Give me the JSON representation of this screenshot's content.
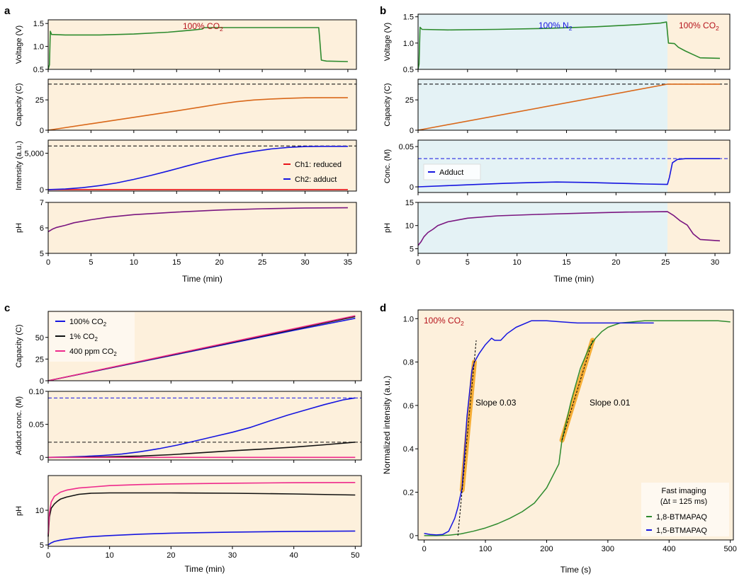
{
  "colors": {
    "background_co2": "#fdf0dc",
    "background_n2": "#e4f2f5",
    "green": "#2e8b2e",
    "orange": "#d9681a",
    "blue": "#1515e0",
    "red": "#e8141a",
    "purple": "#7a1680",
    "black": "#111111",
    "magenta": "#ee2a8c",
    "highlight": "#f5a623",
    "co2_label": "#b5121b",
    "n2_label": "#1515e0"
  },
  "chart_data": [
    {
      "panel": "a",
      "type": "line",
      "xlabel": "Time (min)",
      "xlim": [
        0,
        36
      ],
      "xticks": [
        "0",
        "5",
        "10",
        "15",
        "20",
        "25",
        "30",
        "35"
      ],
      "annotation": {
        "text": "100% CO",
        "sub": "2"
      },
      "subplots": [
        {
          "ylabel": "Voltage (V)",
          "ylim": [
            0.5,
            1.58
          ],
          "yticks": [
            "0.5",
            "1.0",
            "1.5"
          ],
          "series": [
            {
              "name": "Voltage",
              "color": "green",
              "x": [
                0,
                0.15,
                0.25,
                0.4,
                2,
                6,
                10,
                14,
                17,
                18,
                18.2,
                19,
                25,
                31.6,
                31.7,
                31.9,
                32.5,
                35
              ],
              "y": [
                0.5,
                0.6,
                1.33,
                1.26,
                1.25,
                1.25,
                1.27,
                1.31,
                1.36,
                1.38,
                1.41,
                1.41,
                1.41,
                1.41,
                1.2,
                0.7,
                0.68,
                0.67
              ]
            }
          ]
        },
        {
          "ylabel": "Capacity (C)",
          "ylim": [
            0,
            42
          ],
          "yticks": [
            "0",
            "25"
          ],
          "hline": 38,
          "series": [
            {
              "name": "Capacity",
              "color": "orange",
              "x": [
                0,
                5,
                10,
                15,
                18,
                20,
                22,
                24,
                26,
                28,
                30,
                32,
                35
              ],
              "y": [
                0,
                5.3,
                10.6,
                15.9,
                19.3,
                21.6,
                23.5,
                24.9,
                25.7,
                26.3,
                26.7,
                26.8,
                26.8
              ]
            }
          ]
        },
        {
          "ylabel": "Intensity (a.u.)",
          "ylim": [
            -200,
            6800
          ],
          "yticks": [
            "0",
            "5,000"
          ],
          "hline": 6000,
          "legend": [
            "Ch1: reduced",
            "Ch2: adduct"
          ],
          "series": [
            {
              "name": "Ch1: reduced",
              "color": "red",
              "x": [
                0,
                35
              ],
              "y": [
                0,
                0
              ]
            },
            {
              "name": "Ch2: adduct",
              "color": "blue",
              "x": [
                0,
                2,
                4,
                6,
                8,
                10,
                12,
                14,
                16,
                18,
                20,
                22,
                24,
                26,
                28,
                30,
                32,
                35
              ],
              "y": [
                0,
                80,
                270,
                550,
                920,
                1400,
                1950,
                2550,
                3180,
                3800,
                4350,
                4850,
                5250,
                5580,
                5800,
                5920,
                5940,
                5940
              ]
            }
          ]
        },
        {
          "ylabel": "pH",
          "ylim": [
            5,
            7
          ],
          "yticks": [
            "5",
            "6",
            "7"
          ],
          "series": [
            {
              "name": "pH",
              "color": "purple",
              "x": [
                0,
                0.5,
                1,
                2,
                3,
                5,
                7,
                10,
                15,
                20,
                25,
                30,
                35
              ],
              "y": [
                5.85,
                5.95,
                6.02,
                6.1,
                6.2,
                6.32,
                6.42,
                6.52,
                6.62,
                6.7,
                6.75,
                6.78,
                6.79
              ]
            }
          ]
        }
      ]
    },
    {
      "panel": "b",
      "type": "line",
      "xlabel": "Time (min)",
      "xlim": [
        0,
        31.5
      ],
      "xticks": [
        "0",
        "5",
        "10",
        "15",
        "20",
        "25",
        "30"
      ],
      "n2_end": 25.2,
      "annotations": [
        {
          "text": "100% N",
          "sub": "2"
        },
        {
          "text": "100% CO",
          "sub": "2"
        }
      ],
      "subplots": [
        {
          "ylabel": "Voltage (V)",
          "ylim": [
            0.5,
            1.55
          ],
          "yticks": [
            "0.5",
            "1.0",
            "1.5"
          ],
          "series": [
            {
              "name": "Voltage",
              "color": "green",
              "x": [
                0,
                0.1,
                0.2,
                0.4,
                3,
                8,
                13,
                18,
                22,
                24.5,
                25.1,
                25.3,
                25.9,
                26.3,
                27,
                27.8,
                28.5,
                30.5
              ],
              "y": [
                0.5,
                0.6,
                1.3,
                1.26,
                1.25,
                1.26,
                1.28,
                1.31,
                1.35,
                1.38,
                1.4,
                1.0,
                0.99,
                0.92,
                0.85,
                0.78,
                0.72,
                0.71
              ]
            }
          ]
        },
        {
          "ylabel": "Capacity (C)",
          "ylim": [
            0,
            42
          ],
          "yticks": [
            "0",
            "25"
          ],
          "hline": 38,
          "series": [
            {
              "name": "Capacity",
              "color": "orange",
              "x": [
                0,
                25.2,
                30.5
              ],
              "y": [
                0,
                38,
                38
              ]
            }
          ]
        },
        {
          "ylabel": "Conc. (M)",
          "ylim": [
            -0.007,
            0.058
          ],
          "yticks": [
            "0",
            "0.05"
          ],
          "hline": 0.035,
          "legend": [
            "Adduct"
          ],
          "series": [
            {
              "name": "Adduct",
              "color": "blue",
              "x": [
                0,
                3,
                6,
                9,
                12,
                14,
                17,
                20,
                23,
                25.2,
                25.4,
                25.7,
                26.2,
                27,
                28,
                30.5
              ],
              "y": [
                0,
                0.0015,
                0.003,
                0.0045,
                0.0055,
                0.006,
                0.0055,
                0.0045,
                0.0035,
                0.003,
                0.012,
                0.03,
                0.034,
                0.035,
                0.035,
                0.035
              ]
            }
          ]
        },
        {
          "ylabel": "pH",
          "ylim": [
            4,
            15
          ],
          "yticks": [
            "5",
            "10",
            "15"
          ],
          "series": [
            {
              "name": "pH",
              "color": "purple",
              "x": [
                0,
                0.3,
                0.6,
                1,
                1.5,
                2,
                3,
                5,
                8,
                12,
                17,
                21,
                25.2,
                25.8,
                26.5,
                27.2,
                27.8,
                28.5,
                30.5
              ],
              "y": [
                5.7,
                6.5,
                7.6,
                8.5,
                9.2,
                10,
                10.8,
                11.6,
                12.1,
                12.4,
                12.7,
                12.9,
                13,
                12.2,
                11,
                10.1,
                8.2,
                7,
                6.7
              ]
            }
          ]
        }
      ]
    },
    {
      "panel": "c",
      "type": "line",
      "xlabel": "Time (min)",
      "xlim": [
        0,
        51
      ],
      "xticks": [
        "0",
        "10",
        "20",
        "30",
        "40",
        "50"
      ],
      "legend": [
        {
          "text": "100% CO",
          "sub": "2"
        },
        {
          "text": "1% CO",
          "sub": "2"
        },
        {
          "text": "400 ppm CO",
          "sub": "2"
        }
      ],
      "subplots": [
        {
          "ylabel": "Capacity (C)",
          "ylim": [
            0,
            80
          ],
          "yticks": [
            "0",
            "25",
            "50"
          ],
          "series": [
            {
              "name": "100% CO2",
              "color": "blue",
              "x": [
                0,
                40,
                50
              ],
              "y": [
                0,
                58,
                72
              ]
            },
            {
              "name": "1% CO2",
              "color": "black",
              "x": [
                0,
                50
              ],
              "y": [
                0,
                74
              ]
            },
            {
              "name": "400 ppm CO2",
              "color": "magenta",
              "x": [
                0,
                50
              ],
              "y": [
                0,
                75
              ]
            }
          ]
        },
        {
          "ylabel": "Adduct conc. (M)",
          "ylim": [
            -0.004,
            0.1
          ],
          "yticks": [
            "0",
            "0.05",
            "0.10"
          ],
          "hlines": [
            {
              "y": 0.09,
              "color": "blue"
            },
            {
              "y": 0.023,
              "color": "black"
            }
          ],
          "series": [
            {
              "name": "100% CO2",
              "color": "blue",
              "x": [
                0,
                3,
                6,
                9,
                12,
                15,
                18,
                21,
                24,
                27,
                30,
                33,
                36,
                39,
                42,
                45,
                48,
                50
              ],
              "y": [
                0,
                0.0005,
                0.0015,
                0.003,
                0.005,
                0.0085,
                0.013,
                0.0185,
                0.025,
                0.0315,
                0.038,
                0.0455,
                0.055,
                0.064,
                0.072,
                0.08,
                0.087,
                0.09
              ]
            },
            {
              "name": "1% CO2",
              "color": "black",
              "x": [
                0,
                5,
                10,
                15,
                20,
                25,
                30,
                35,
                40,
                45,
                50
              ],
              "y": [
                0,
                0.0003,
                0.001,
                0.002,
                0.004,
                0.007,
                0.01,
                0.0125,
                0.0155,
                0.019,
                0.023
              ]
            },
            {
              "name": "400 ppm CO2",
              "color": "magenta",
              "x": [
                0,
                50
              ],
              "y": [
                0,
                0
              ]
            }
          ]
        },
        {
          "ylabel": "pH",
          "ylim": [
            4.8,
            15
          ],
          "yticks": [
            "5",
            "10"
          ],
          "series": [
            {
              "name": "100% CO2",
              "color": "blue",
              "x": [
                0,
                0.5,
                1,
                2,
                4,
                7,
                10,
                15,
                20,
                30,
                40,
                50
              ],
              "y": [
                5,
                5.3,
                5.5,
                5.7,
                5.95,
                6.2,
                6.35,
                6.55,
                6.7,
                6.85,
                6.95,
                7.0
              ]
            },
            {
              "name": "1% CO2",
              "color": "black",
              "x": [
                0,
                0.2,
                0.5,
                1,
                1.5,
                2,
                3,
                5,
                7,
                10,
                15,
                20,
                30,
                40,
                50
              ],
              "y": [
                6.2,
                9,
                10.3,
                10.9,
                11.3,
                11.6,
                11.9,
                12.3,
                12.45,
                12.5,
                12.5,
                12.5,
                12.45,
                12.35,
                12.2
              ]
            },
            {
              "name": "400 ppm CO2",
              "color": "magenta",
              "x": [
                0,
                0.2,
                0.5,
                1,
                2,
                3,
                5,
                10,
                15,
                20,
                30,
                40,
                50
              ],
              "y": [
                6.5,
                9.6,
                11.2,
                12,
                12.6,
                12.9,
                13.2,
                13.55,
                13.7,
                13.8,
                13.9,
                13.97,
                14.0
              ]
            }
          ]
        }
      ]
    },
    {
      "panel": "d",
      "type": "line",
      "xlabel": "Time (s)",
      "ylabel": "Normalized intensity (a.u.)",
      "xlim": [
        -10,
        505
      ],
      "ylim": [
        -0.02,
        1.04
      ],
      "xticks": [
        "0",
        "100",
        "200",
        "300",
        "400",
        "500"
      ],
      "yticks": [
        "0",
        "0.2",
        "0.4",
        "0.6",
        "0.8",
        "1.0"
      ],
      "annotation": {
        "text": "100% CO",
        "sub": "2"
      },
      "slope_labels": [
        "Slope 0.03",
        "Slope 0.01"
      ],
      "legend_title": [
        "Fast imaging",
        "(Δt = 125 ms)"
      ],
      "legend": [
        "1,8-BTMAPAQ",
        "1,5-BTMAPAQ"
      ],
      "series": [
        {
          "name": "1,8-BTMAPAQ",
          "color": "green",
          "x": [
            0,
            20,
            40,
            60,
            80,
            100,
            120,
            140,
            160,
            180,
            200,
            220,
            225,
            240,
            255,
            270,
            280,
            290,
            300,
            320,
            340,
            360,
            380,
            400,
            440,
            480,
            500
          ],
          "y": [
            0,
            0,
            0.002,
            0.008,
            0.02,
            0.035,
            0.055,
            0.08,
            0.11,
            0.15,
            0.22,
            0.33,
            0.44,
            0.62,
            0.77,
            0.87,
            0.91,
            0.94,
            0.96,
            0.98,
            0.985,
            0.99,
            0.99,
            0.99,
            0.99,
            0.99,
            0.985
          ]
        },
        {
          "name": "1,5-BTMAPAQ",
          "color": "blue",
          "x": [
            0,
            10,
            20,
            30,
            40,
            50,
            55,
            62,
            70,
            78,
            82,
            90,
            100,
            110,
            115,
            125,
            135,
            150,
            175,
            200,
            225,
            250,
            300,
            350,
            375
          ],
          "y": [
            0.01,
            0.005,
            0.003,
            0.005,
            0.02,
            0.08,
            0.13,
            0.22,
            0.55,
            0.76,
            0.8,
            0.84,
            0.88,
            0.91,
            0.9,
            0.9,
            0.93,
            0.96,
            0.99,
            0.99,
            0.985,
            0.98,
            0.98,
            0.98,
            0.98
          ]
        }
      ],
      "fits": [
        {
          "x": [
            62,
            82
          ],
          "y": [
            0.21,
            0.8
          ]
        },
        {
          "x": [
            225,
            275
          ],
          "y": [
            0.44,
            0.9
          ]
        }
      ],
      "fit_extension": {
        "x": [
          55,
          85
        ],
        "y": [
          0.0,
          0.9
        ]
      }
    }
  ]
}
